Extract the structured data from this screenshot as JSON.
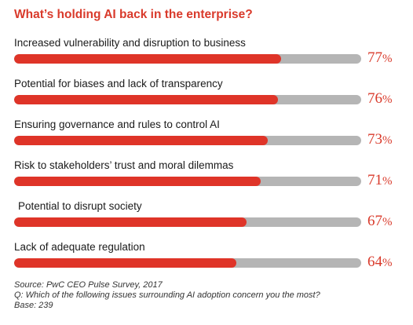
{
  "chart_data": {
    "type": "bar",
    "orientation": "horizontal",
    "title": "What’s holding AI back in the enterprise?",
    "categories": [
      "Increased vulnerability and disruption to business",
      "Potential for biases and lack of transparency",
      "Ensuring governance and rules to control AI",
      "Risk to stakeholders’ trust and moral dilemmas",
      "Potential to disrupt society",
      "Lack of adequate regulation"
    ],
    "values": [
      77,
      76,
      73,
      71,
      67,
      64
    ],
    "value_labels": [
      "77",
      "76",
      "73",
      "71",
      "67",
      "64"
    ],
    "value_suffix": "%",
    "xlim": [
      0,
      100
    ],
    "grid": false,
    "legend": "none",
    "colors": {
      "fill": "#df3428",
      "track": "#b5b5b5",
      "title": "#d93a2b",
      "value": "#d93a2b"
    }
  },
  "footer": {
    "source": "Source: PwC CEO Pulse Survey, 2017",
    "question": "Q: Which of the following issues surrounding AI adoption concern you the most?",
    "base": "Base: 239"
  }
}
